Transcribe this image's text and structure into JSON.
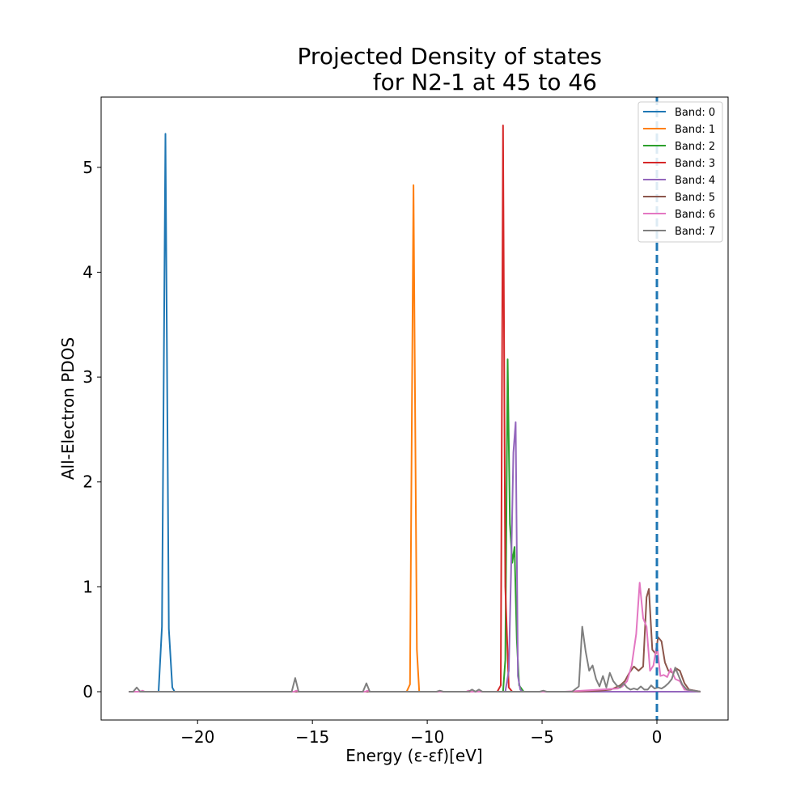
{
  "chart_data": {
    "type": "line",
    "title_line1": "Projected Density of states",
    "title_line2": "for N2-1 at 45 to 46",
    "xlabel": "Energy (ε-εf)[eV]",
    "ylabel": "All-Electron PDOS",
    "xlim": [
      -24.2,
      3.1
    ],
    "ylim": [
      -0.27,
      5.67
    ],
    "x_ticks": [
      -20,
      -15,
      -10,
      -5,
      0
    ],
    "x_tick_labels": [
      "−20",
      "−15",
      "−10",
      "−5",
      "0"
    ],
    "y_ticks": [
      0,
      1,
      2,
      3,
      4,
      5
    ],
    "y_tick_labels": [
      "0",
      "1",
      "2",
      "3",
      "4",
      "5"
    ],
    "grid": false,
    "legend_position": "top-right",
    "fermi_level": {
      "x": 0,
      "color": "#1f77b4",
      "style": "dashed"
    },
    "series": [
      {
        "name": "Band: 0",
        "color": "#1f77b4",
        "x": [
          -23.0,
          -21.7,
          -21.55,
          -21.4,
          -21.25,
          -21.1,
          -21.0,
          1.9
        ],
        "y": [
          0,
          0,
          0.62,
          5.32,
          0.6,
          0.04,
          0,
          0
        ]
      },
      {
        "name": "Band: 1",
        "color": "#ff7f0e",
        "x": [
          -23.0,
          -10.9,
          -10.75,
          -10.6,
          -10.45,
          -10.35,
          1.9
        ],
        "y": [
          0,
          0,
          0.07,
          4.83,
          0.4,
          0,
          0
        ]
      },
      {
        "name": "Band: 2",
        "color": "#2ca02c",
        "x": [
          -23.0,
          -6.7,
          -6.6,
          -6.5,
          -6.4,
          -6.3,
          -6.2,
          -6.1,
          -6.0,
          -5.8,
          1.9
        ],
        "y": [
          0,
          0,
          0.3,
          3.17,
          1.6,
          1.23,
          1.38,
          0.5,
          0.06,
          0,
          0
        ]
      },
      {
        "name": "Band: 3",
        "color": "#d62728",
        "x": [
          -23.0,
          -6.95,
          -6.8,
          -6.7,
          -6.6,
          -6.45,
          -6.3,
          1.9
        ],
        "y": [
          0,
          0,
          0.06,
          5.4,
          1.0,
          0.04,
          0,
          0
        ]
      },
      {
        "name": "Band: 4",
        "color": "#9467bd",
        "x": [
          -23.0,
          -6.6,
          -6.45,
          -6.35,
          -6.25,
          -6.15,
          -6.05,
          -5.95,
          -5.85,
          1.9
        ],
        "y": [
          0,
          0,
          0.2,
          1.14,
          2.28,
          2.57,
          0.15,
          0.02,
          0,
          0
        ]
      },
      {
        "name": "Band: 5",
        "color": "#8c564b",
        "x": [
          -23.0,
          -3.5,
          -2.5,
          -2.0,
          -1.8,
          -1.6,
          -1.4,
          -1.2,
          -1.0,
          -0.8,
          -0.6,
          -0.45,
          -0.35,
          -0.2,
          -0.05,
          0.05,
          0.2,
          0.35,
          0.5,
          0.7,
          0.85,
          1.0,
          1.2,
          1.4,
          1.9
        ],
        "y": [
          0,
          0,
          0.01,
          0.02,
          0.04,
          0.06,
          0.1,
          0.18,
          0.24,
          0.2,
          0.24,
          0.9,
          0.98,
          0.4,
          0.36,
          0.52,
          0.48,
          0.28,
          0.2,
          0.18,
          0.22,
          0.2,
          0.08,
          0.02,
          0
        ]
      },
      {
        "name": "Band: 6",
        "color": "#e377c2",
        "x": [
          -23.0,
          -22.5,
          -22.4,
          -22.3,
          -15.8,
          -15.7,
          -15.6,
          -12.7,
          -12.6,
          -12.5,
          -8.3,
          -8.2,
          -8.1,
          -4.0,
          -1.7,
          -1.5,
          -1.3,
          -1.1,
          -0.9,
          -0.75,
          -0.6,
          -0.45,
          -0.3,
          -0.15,
          0.0,
          0.15,
          0.3,
          0.45,
          0.6,
          0.8,
          1.0,
          1.2,
          1.9
        ],
        "y": [
          0,
          0,
          0.01,
          0,
          0,
          0.01,
          0,
          0,
          0.01,
          0,
          0,
          0.01,
          0,
          0,
          0.03,
          0.05,
          0.1,
          0.25,
          0.55,
          1.04,
          0.7,
          0.62,
          0.2,
          0.25,
          0.45,
          0.15,
          0.16,
          0.14,
          0.22,
          0.12,
          0.1,
          0.02,
          0
        ]
      },
      {
        "name": "Band: 7",
        "color": "#7f7f7f",
        "x": [
          -23.0,
          -22.8,
          -22.65,
          -22.5,
          -15.9,
          -15.75,
          -15.6,
          -12.8,
          -12.65,
          -12.5,
          -9.6,
          -9.45,
          -9.3,
          -8.2,
          -8.05,
          -7.9,
          -7.75,
          -7.6,
          -7.45,
          -5.1,
          -4.95,
          -4.8,
          -3.7,
          -3.4,
          -3.25,
          -3.1,
          -2.95,
          -2.8,
          -2.65,
          -2.5,
          -2.35,
          -2.2,
          -2.05,
          -1.9,
          -1.75,
          -1.6,
          -1.45,
          -1.3,
          -1.15,
          -1.0,
          -0.85,
          -0.7,
          -0.55,
          -0.4,
          -0.25,
          -0.1,
          0.05,
          0.2,
          0.35,
          0.5,
          0.65,
          0.8,
          0.95,
          1.1,
          1.3,
          1.9
        ],
        "y": [
          0,
          0,
          0.04,
          0,
          0,
          0.13,
          0,
          0,
          0.08,
          0,
          0,
          0.01,
          0,
          0,
          0.02,
          0,
          0.02,
          0,
          0,
          0,
          0.01,
          0,
          0,
          0.05,
          0.62,
          0.38,
          0.2,
          0.25,
          0.12,
          0.05,
          0.15,
          0.04,
          0.18,
          0.1,
          0.06,
          0.04,
          0.08,
          0.04,
          0.02,
          0.03,
          0.02,
          0.05,
          0.02,
          0.02,
          0.06,
          0.03,
          0.04,
          0.03,
          0.05,
          0.08,
          0.12,
          0.23,
          0.15,
          0.07,
          0.02,
          0
        ]
      }
    ]
  }
}
